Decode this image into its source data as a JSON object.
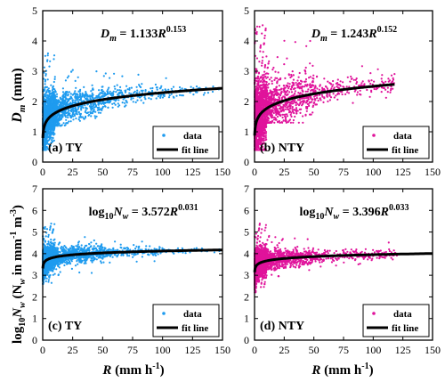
{
  "chart_data": [
    {
      "type": "scatter",
      "panel_label": "(a) TY",
      "equation": {
        "lhs": "D",
        "lhs_sub": "m",
        "rhs": " = 1.133R",
        "exp": "0.153"
      },
      "coef": 1.133,
      "expn": 0.153,
      "color": "#1E9BEF",
      "ylabel": "D_m (mm)",
      "xlim": [
        0,
        150
      ],
      "ylim": [
        0,
        5
      ],
      "xticks": [
        0,
        25,
        50,
        75,
        100,
        125,
        150
      ],
      "yticks": [
        0,
        1,
        2,
        3,
        4,
        5
      ],
      "fit_xmax": 150,
      "legend": [
        "data",
        "fit line"
      ],
      "scatter_bands": [
        {
          "x_range": [
            0.1,
            10
          ],
          "y_range": [
            0.4,
            3.6
          ],
          "density": "very high"
        },
        {
          "x_range": [
            10,
            50
          ],
          "y_range": [
            1.2,
            3.2
          ],
          "density": "high"
        },
        {
          "x_range": [
            50,
            100
          ],
          "y_range": [
            1.8,
            3.0
          ],
          "density": "medium"
        },
        {
          "x_range": [
            100,
            150
          ],
          "y_range": [
            2.1,
            2.8
          ],
          "density": "low"
        }
      ]
    },
    {
      "type": "scatter",
      "panel_label": "(b) NTY",
      "equation": {
        "lhs": "D",
        "lhs_sub": "m",
        "rhs": " = 1.243R",
        "exp": "0.152"
      },
      "coef": 1.243,
      "expn": 0.152,
      "color": "#E0139B",
      "ylabel": "",
      "xlim": [
        0,
        150
      ],
      "ylim": [
        0,
        5
      ],
      "xticks": [
        0,
        25,
        50,
        75,
        100,
        125,
        150
      ],
      "yticks": [
        0,
        1,
        2,
        3,
        4,
        5
      ],
      "fit_xmax": 118,
      "legend": [
        "data",
        "fit line"
      ],
      "scatter_bands": [
        {
          "x_range": [
            0.1,
            10
          ],
          "y_range": [
            0.4,
            4.6
          ],
          "density": "very high"
        },
        {
          "x_range": [
            10,
            50
          ],
          "y_range": [
            1.3,
            4.2
          ],
          "density": "high"
        },
        {
          "x_range": [
            50,
            118
          ],
          "y_range": [
            1.9,
            3.3
          ],
          "density": "medium"
        }
      ]
    },
    {
      "type": "scatter",
      "panel_label": "(c) TY",
      "equation": {
        "lhs": "log",
        "lhs_sub": "10",
        "lhs2": "N",
        "lhs2_sub": "w",
        "rhs": " = 3.572R",
        "exp": "0.031"
      },
      "coef": 3.572,
      "expn": 0.031,
      "color": "#1E9BEF",
      "ylabel": "log10Nw (Nw in mm-1 m-3)",
      "xlim": [
        0,
        150
      ],
      "ylim": [
        0,
        7
      ],
      "xticks": [
        0,
        25,
        50,
        75,
        100,
        125,
        150
      ],
      "yticks": [
        0,
        1,
        2,
        3,
        4,
        5,
        6,
        7
      ],
      "fit_xmax": 150,
      "legend": [
        "data",
        "fit line"
      ],
      "scatter_bands": [
        {
          "x_range": [
            0.1,
            10
          ],
          "y_range": [
            2.6,
            5.4
          ],
          "density": "very high"
        },
        {
          "x_range": [
            10,
            50
          ],
          "y_range": [
            3.0,
            4.9
          ],
          "density": "high"
        },
        {
          "x_range": [
            50,
            100
          ],
          "y_range": [
            3.5,
            4.6
          ],
          "density": "medium"
        },
        {
          "x_range": [
            100,
            150
          ],
          "y_range": [
            3.8,
            4.4
          ],
          "density": "low"
        }
      ]
    },
    {
      "type": "scatter",
      "panel_label": "(d) NTY",
      "equation": {
        "lhs": "log",
        "lhs_sub": "10",
        "lhs2": "N",
        "lhs2_sub": "w",
        "rhs": " = 3.396R",
        "exp": "0.033"
      },
      "coef": 3.396,
      "expn": 0.033,
      "color": "#E0139B",
      "ylabel": "",
      "xlim": [
        0,
        150
      ],
      "ylim": [
        0,
        7
      ],
      "xticks": [
        0,
        25,
        50,
        75,
        100,
        125,
        150
      ],
      "yticks": [
        0,
        1,
        2,
        3,
        4,
        5,
        6,
        7
      ],
      "fit_xmax": 150,
      "legend": [
        "data",
        "fit line"
      ],
      "scatter_bands": [
        {
          "x_range": [
            0.1,
            10
          ],
          "y_range": [
            2.2,
            5.4
          ],
          "density": "very high"
        },
        {
          "x_range": [
            10,
            50
          ],
          "y_range": [
            2.9,
            4.9
          ],
          "density": "high"
        },
        {
          "x_range": [
            50,
            120
          ],
          "y_range": [
            3.4,
            4.6
          ],
          "density": "medium"
        }
      ]
    }
  ],
  "labels": {
    "dm_ylabel_main": "D",
    "dm_ylabel_sub": "m",
    "dm_ylabel_tail": " (mm)",
    "nw_ylabel_log": "log",
    "nw_ylabel_logsub": "10",
    "nw_ylabel_N": "N",
    "nw_ylabel_Nsub": "w",
    "nw_ylabel_paren": " (N",
    "nw_ylabel_paren_sub": "w",
    "nw_ylabel_in": " in mm",
    "nw_ylabel_exp1": "-1",
    "nw_ylabel_m": " m",
    "nw_ylabel_exp2": "-3",
    "nw_ylabel_close": ")",
    "xlabel_R": "R",
    "xlabel_unit": " (mm h",
    "xlabel_exp": "-1",
    "xlabel_close": ")"
  }
}
